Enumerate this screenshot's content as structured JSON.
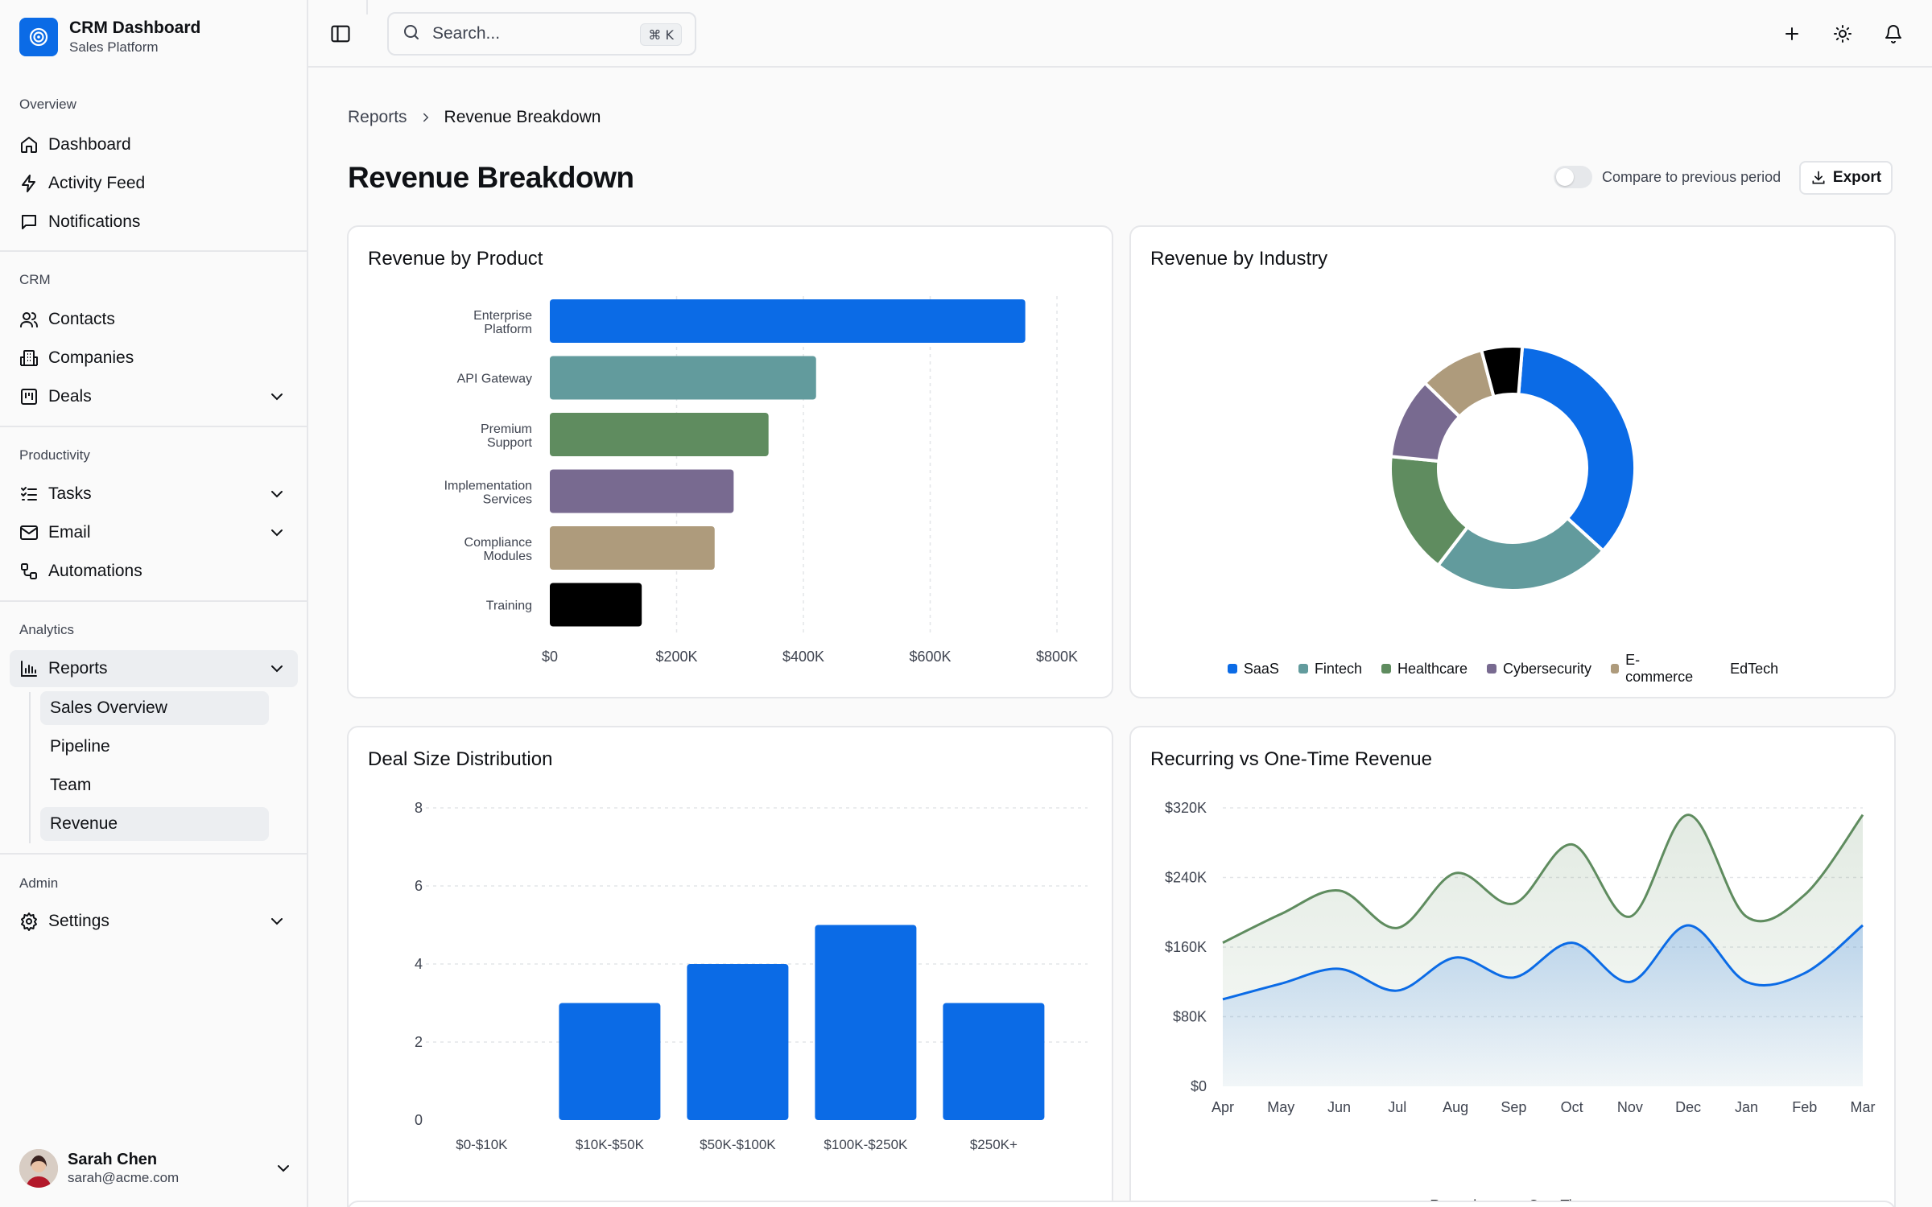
{
  "brand": {
    "title": "CRM Dashboard",
    "subtitle": "Sales Platform"
  },
  "sidebar": {
    "groups": {
      "overview": "Overview",
      "crm": "CRM",
      "productivity": "Productivity",
      "analytics": "Analytics",
      "admin": "Admin"
    },
    "items": {
      "dashboard": "Dashboard",
      "activity_feed": "Activity Feed",
      "notifications": "Notifications",
      "contacts": "Contacts",
      "companies": "Companies",
      "deals": "Deals",
      "tasks": "Tasks",
      "email": "Email",
      "automations": "Automations",
      "reports": "Reports",
      "settings": "Settings"
    },
    "reports_sub": {
      "sales_overview": "Sales Overview",
      "pipeline": "Pipeline",
      "team": "Team",
      "revenue": "Revenue"
    },
    "active_item": "Reports",
    "active_sub": "Revenue"
  },
  "user": {
    "name": "Sarah Chen",
    "email": "sarah@acme.com"
  },
  "topbar": {
    "search_placeholder": "Search...",
    "shortcut": "⌘ K"
  },
  "breadcrumb": {
    "parent": "Reports",
    "current": "Revenue Breakdown"
  },
  "page": {
    "title": "Revenue Breakdown",
    "compare_label": "Compare to previous period",
    "compare_enabled": false,
    "export_label": "Export"
  },
  "colors": {
    "blue": "#0b6be6",
    "teal": "#629b9d",
    "green": "#5f8c5f",
    "purple": "#786a90",
    "tan": "#ae9b7c",
    "black": "#000000"
  },
  "chart_data": [
    {
      "type": "bar",
      "orientation": "horizontal",
      "title": "Revenue by Product",
      "categories": [
        "Enterprise Platform",
        "API Gateway",
        "Premium Support",
        "Implementation Services",
        "Compliance Modules",
        "Training"
      ],
      "values": [
        750000,
        420000,
        345000,
        290000,
        260000,
        145000
      ],
      "colors": [
        "#0b6be6",
        "#629b9d",
        "#5f8c5f",
        "#786a90",
        "#ae9b7c",
        "#000000"
      ],
      "x_ticks": [
        "$0",
        "$200K",
        "$400K",
        "$600K",
        "$800K"
      ],
      "xlim": [
        0,
        800000
      ],
      "grid": "vertical dashed"
    },
    {
      "type": "pie",
      "variant": "donut",
      "title": "Revenue by Industry",
      "categories": [
        "SaaS",
        "Fintech",
        "Healthcare",
        "Cybersecurity",
        "E-commerce",
        "EdTech"
      ],
      "values": [
        33,
        22,
        15,
        10,
        8,
        5
      ],
      "colors": [
        "#0b6be6",
        "#629b9d",
        "#5f8c5f",
        "#786a90",
        "#ae9b7c",
        "#000000"
      ],
      "legend": "bottom"
    },
    {
      "type": "bar",
      "title": "Deal Size Distribution",
      "categories": [
        "$0-$10K",
        "$10K-$50K",
        "$50K-$100K",
        "$100K-$250K",
        "$250K+"
      ],
      "values": [
        0,
        3,
        4,
        5,
        3
      ],
      "y_ticks": [
        "0",
        "2",
        "4",
        "6",
        "8"
      ],
      "ylim": [
        0,
        8
      ],
      "color": "#0b6be6",
      "grid": "horizontal dashed"
    },
    {
      "type": "area",
      "title": "Recurring vs One-Time Revenue",
      "x": [
        "Apr",
        "May",
        "Jun",
        "Jul",
        "Aug",
        "Sep",
        "Oct",
        "Nov",
        "Dec",
        "Jan",
        "Feb",
        "Mar"
      ],
      "series": [
        {
          "name": "Recurring",
          "color": "#0b6be6",
          "values": [
            100000,
            118000,
            135000,
            110000,
            148000,
            125000,
            165000,
            120000,
            185000,
            120000,
            130000,
            185000
          ]
        },
        {
          "name": "One-Time",
          "color": "#5f8c5f",
          "values": [
            165000,
            198000,
            225000,
            182000,
            245000,
            210000,
            278000,
            195000,
            312000,
            195000,
            220000,
            312000
          ]
        }
      ],
      "y_ticks": [
        "$0",
        "$80K",
        "$160K",
        "$240K",
        "$320K"
      ],
      "ylim": [
        0,
        320000
      ],
      "legend": "bottom",
      "grid": "horizontal dashed"
    }
  ]
}
